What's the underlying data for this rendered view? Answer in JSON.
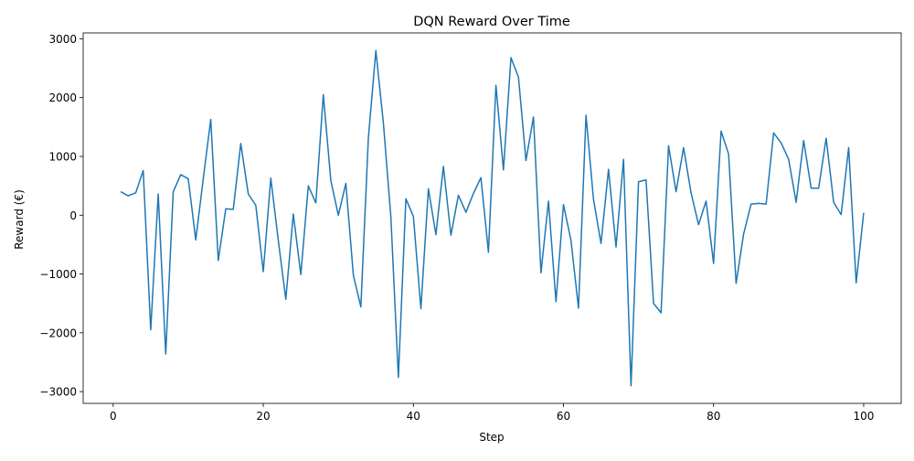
{
  "chart_data": {
    "type": "line",
    "title": "DQN Reward Over Time",
    "xlabel": "Step",
    "ylabel": "Reward (€)",
    "xlim": [
      -4,
      105
    ],
    "ylim": [
      -3200,
      3100
    ],
    "xticks": [
      0,
      20,
      40,
      60,
      80,
      100
    ],
    "yticks": [
      -3000,
      -2000,
      -1000,
      0,
      1000,
      2000,
      3000
    ],
    "grid": false,
    "line_color": "#1f77b4",
    "series": [
      {
        "x": [
          1,
          2,
          3,
          4,
          5,
          6,
          7,
          8,
          9,
          10,
          11,
          12,
          13,
          14,
          15,
          16,
          17,
          18,
          19,
          20,
          21,
          22,
          23,
          24,
          25,
          26,
          27,
          28,
          29,
          30,
          31,
          32,
          33,
          34,
          35,
          36,
          37,
          38,
          39,
          40,
          41,
          42,
          43,
          44,
          45,
          46,
          47,
          48,
          49,
          50,
          51,
          52,
          53,
          54,
          55,
          56,
          57,
          58,
          59,
          60,
          61,
          62,
          63,
          64,
          65,
          66,
          67,
          68,
          69,
          70,
          71,
          72,
          73,
          74,
          75,
          76,
          77,
          78,
          79,
          80,
          81,
          82,
          83,
          84,
          85,
          86,
          87,
          88,
          89,
          90,
          91,
          92,
          93,
          94,
          95,
          96,
          97,
          98,
          99,
          100
        ],
        "values": [
          400,
          330,
          380,
          760,
          -1950,
          360,
          -2360,
          400,
          690,
          620,
          -420,
          620,
          1630,
          -770,
          110,
          100,
          1220,
          360,
          170,
          -960,
          630,
          -430,
          -1430,
          20,
          -1010,
          500,
          210,
          2050,
          590,
          0,
          540,
          -1020,
          -1560,
          1310,
          2800,
          1570,
          -30,
          -2760,
          280,
          -20,
          -1590,
          450,
          -330,
          830,
          -340,
          340,
          50,
          370,
          640,
          -630,
          2210,
          770,
          2680,
          2350,
          930,
          1670,
          -980,
          240,
          -1470,
          180,
          -430,
          -1580,
          1700,
          270,
          -480,
          780,
          -540,
          950,
          -2900,
          570,
          600,
          -1500,
          -1660,
          1180,
          400,
          1150,
          380,
          -160,
          240,
          -820,
          1430,
          1040,
          -1160,
          -320,
          190,
          200,
          190,
          1400,
          1230,
          950,
          220,
          1270,
          460,
          460,
          1310,
          220,
          10,
          1150,
          -1150,
          40
        ]
      }
    ]
  }
}
